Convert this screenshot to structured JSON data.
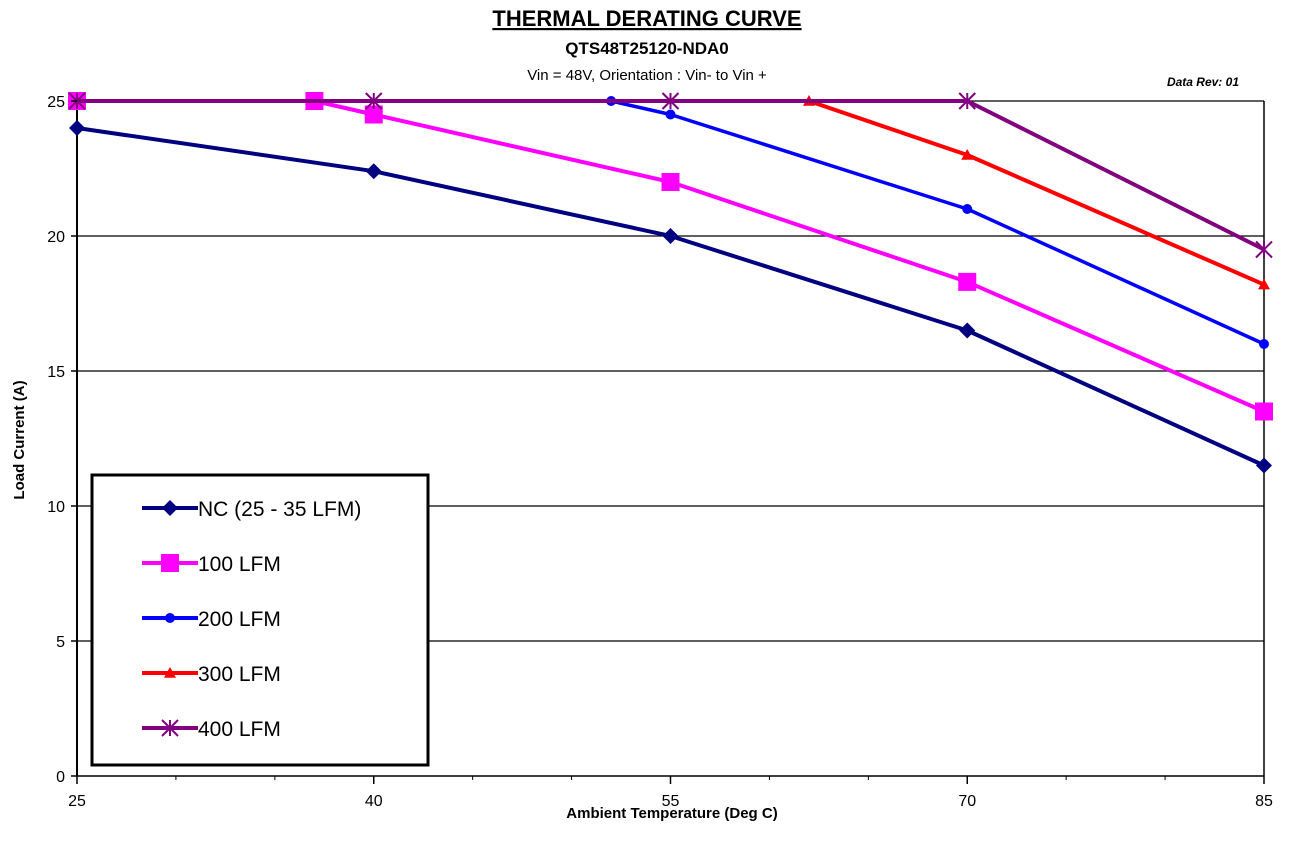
{
  "chart_data": {
    "type": "line",
    "title": "THERMAL DERATING CURVE",
    "subtitle": "QTS48T25120-NDA0",
    "condition": "Vin = 48V, Orientation : Vin- to Vin +",
    "data_rev": "Data Rev:  01",
    "xlabel": "Ambient Temperature (Deg C)",
    "ylabel": "Load Current (A)",
    "xlim": [
      25,
      85
    ],
    "ylim": [
      0,
      25
    ],
    "xticks": [
      25,
      40,
      55,
      70,
      85
    ],
    "yticks": [
      0,
      5,
      10,
      15,
      20,
      25
    ],
    "grid": "horizontal",
    "legend_position": "bottom-left",
    "series": [
      {
        "name": "NC (25 - 35 LFM)",
        "color": "#000080",
        "marker": "diamond",
        "x": [
          25,
          40,
          55,
          70,
          85
        ],
        "y": [
          24,
          22.4,
          20,
          16.5,
          11.5
        ]
      },
      {
        "name": "100 LFM",
        "color": "#FF00FF",
        "marker": "square",
        "x": [
          25,
          37,
          40,
          55,
          70,
          85
        ],
        "y": [
          25,
          25,
          24.5,
          22,
          18.3,
          13.5
        ]
      },
      {
        "name": "200 LFM",
        "color": "#0000FF",
        "marker": "circle",
        "x": [
          52,
          55,
          70,
          85
        ],
        "y": [
          25,
          24.5,
          21,
          16
        ]
      },
      {
        "name": "300 LFM",
        "color": "#FF0000",
        "marker": "triangle",
        "x": [
          62,
          70,
          85
        ],
        "y": [
          25,
          23,
          18.2
        ]
      },
      {
        "name": "400 LFM",
        "color": "#800080",
        "marker": "star",
        "x": [
          25,
          40,
          55,
          70,
          85
        ],
        "y": [
          25,
          25,
          25,
          25,
          19.5
        ]
      }
    ]
  }
}
